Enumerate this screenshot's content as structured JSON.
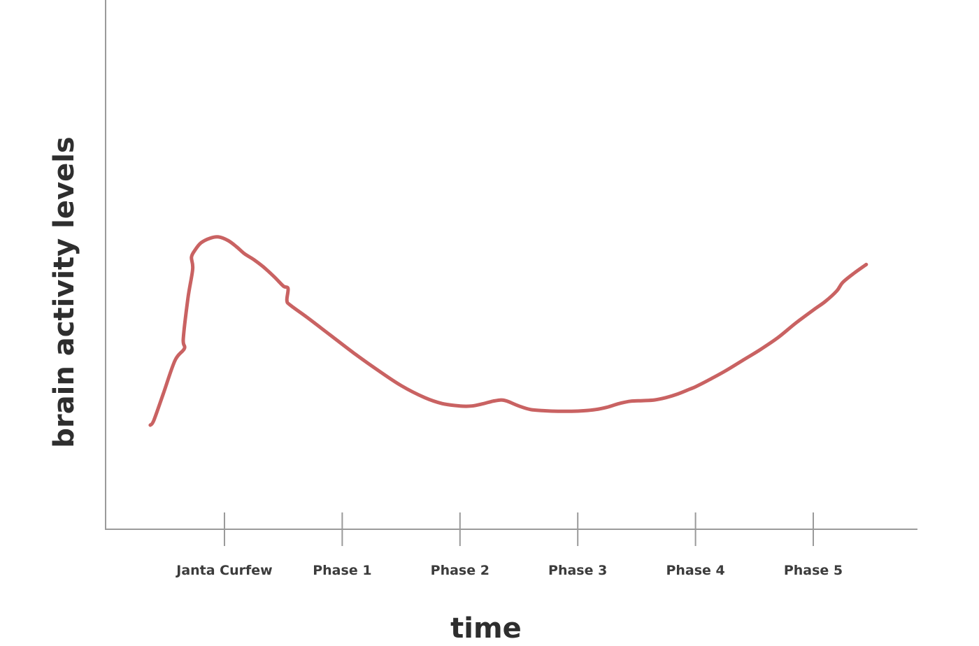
{
  "chart_data": {
    "type": "line",
    "xlabel": "time",
    "ylabel": "brain activity levels",
    "categories": [
      "Janta Curfew",
      "Phase 1",
      "Phase 2",
      "Phase 3",
      "Phase 4",
      "Phase 5"
    ],
    "xlim": [
      -0.64,
      6.0
    ],
    "ylim": [
      0,
      10
    ],
    "grid": false,
    "legend": "none",
    "series": [
      {
        "color": "#c96262",
        "x": [
          -0.63,
          -0.6,
          -0.52,
          -0.42,
          -0.34,
          -0.35,
          -0.31,
          -0.27,
          -0.28,
          -0.25,
          -0.2,
          -0.12,
          -0.05,
          0.03,
          0.1,
          0.17,
          0.25,
          0.33,
          0.42,
          0.5,
          0.54,
          0.53,
          0.56,
          0.7,
          0.9,
          1.1,
          1.3,
          1.5,
          1.7,
          1.85,
          2.0,
          2.1,
          2.2,
          2.28,
          2.35,
          2.4,
          2.5,
          2.6,
          2.72,
          2.83,
          2.95,
          3.05,
          3.15,
          3.25,
          3.35,
          3.45,
          3.55,
          3.65,
          3.75,
          3.85,
          3.95,
          4.0,
          4.1,
          4.25,
          4.4,
          4.55,
          4.7,
          4.85,
          5.0,
          5.1,
          5.2,
          5.25,
          5.35,
          5.45
        ],
        "y": [
          1.6,
          1.8,
          2.9,
          4.3,
          4.8,
          5.2,
          6.9,
          8.1,
          8.6,
          8.9,
          9.2,
          9.4,
          9.45,
          9.3,
          9.05,
          8.75,
          8.5,
          8.2,
          7.8,
          7.4,
          7.3,
          6.8,
          6.6,
          6.1,
          5.35,
          4.6,
          3.9,
          3.25,
          2.75,
          2.5,
          2.4,
          2.4,
          2.5,
          2.6,
          2.65,
          2.6,
          2.4,
          2.25,
          2.2,
          2.18,
          2.18,
          2.2,
          2.25,
          2.35,
          2.5,
          2.6,
          2.62,
          2.65,
          2.75,
          2.9,
          3.1,
          3.2,
          3.45,
          3.85,
          4.3,
          4.75,
          5.25,
          5.85,
          6.4,
          6.75,
          7.2,
          7.55,
          7.95,
          8.3
        ]
      }
    ]
  }
}
